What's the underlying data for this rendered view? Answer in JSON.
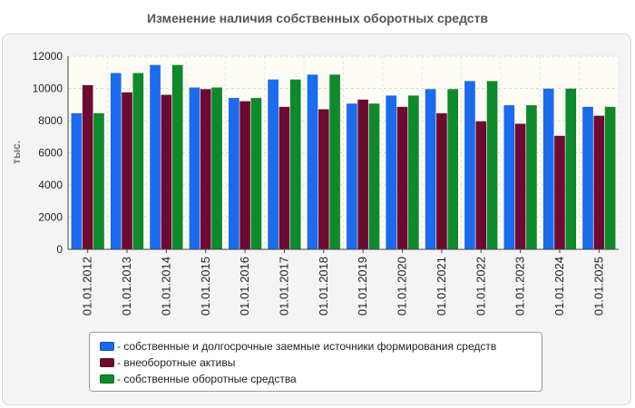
{
  "chart_data": {
    "type": "bar",
    "title": "Изменение наличия собственных оборотных средств",
    "xlabel": "",
    "ylabel": "тыс.",
    "ylim": [
      0,
      12000
    ],
    "yticks": [
      "0",
      "2000",
      "4000",
      "6000",
      "8000",
      "10000",
      "12000"
    ],
    "grid": true,
    "legend_position": "bottom",
    "categories": [
      "01.01.2012",
      "01.01.2013",
      "01.01.2014",
      "01.01.2015",
      "01.01.2016",
      "01.01.2017",
      "01.01.2018",
      "01.01.2019",
      "01.01.2020",
      "01.01.2021",
      "01.01.2022",
      "01.01.2023",
      "01.01.2024",
      "01.01.2025"
    ],
    "series": [
      {
        "name": "- собственные и долгосрочные заемные источники формирования средств",
        "color": "#1a6bf0",
        "values": [
          8450,
          10950,
          11450,
          10050,
          9400,
          10550,
          10850,
          9050,
          9550,
          9950,
          10450,
          8950,
          9980,
          8850
        ]
      },
      {
        "name": "- внеоборотные активы",
        "color": "#6e0a32",
        "values": [
          10200,
          9750,
          9600,
          9950,
          9200,
          8850,
          8700,
          9300,
          8850,
          8450,
          7950,
          7800,
          7050,
          8300
        ]
      },
      {
        "name": "- собственные оборотные средства",
        "color": "#0d8a2c",
        "values": [
          8450,
          10950,
          11450,
          10050,
          9400,
          10550,
          10850,
          9050,
          9550,
          9950,
          10450,
          8950,
          9980,
          8850
        ]
      }
    ]
  }
}
